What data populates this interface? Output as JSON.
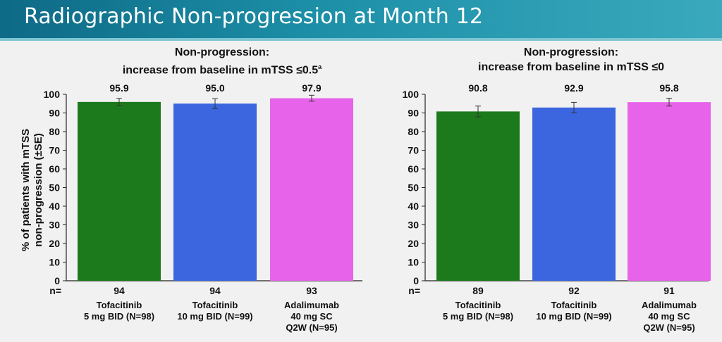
{
  "header": {
    "title": "Radiographic Non-progression at Month 12"
  },
  "ylabel": [
    "% of patients with mTSS",
    "non-progression (±SE)"
  ],
  "n_label": "n=",
  "colors": {
    "tofa5": "#1c7a1c",
    "tofa10": "#3b66e0",
    "ada": "#e764ea"
  },
  "chart_data": [
    {
      "type": "bar",
      "title": [
        "Non-progression:",
        "increase from baseline in mTSS ≤0.5"
      ],
      "title_sup": "a",
      "categories": [
        [
          "Tofacitinib",
          "5 mg BID (N=98)"
        ],
        [
          "Tofacitinib",
          "10 mg BID (N=99)"
        ],
        [
          "Adalimumab",
          "40 mg SC",
          "Q2W (N=95)"
        ]
      ],
      "values": [
        95.9,
        95.0,
        97.9
      ],
      "data_labels": [
        "95.9",
        "95.0",
        "97.9"
      ],
      "error": [
        1.9,
        2.6,
        1.6
      ],
      "n": [
        "94",
        "94",
        "93"
      ],
      "ylim": [
        0,
        100
      ],
      "yticks": [
        0,
        10,
        20,
        30,
        40,
        50,
        60,
        70,
        80,
        90,
        100
      ],
      "grid": false
    },
    {
      "type": "bar",
      "title": [
        "Non-progression:",
        "increase from baseline in mTSS ≤0"
      ],
      "title_sup": "",
      "categories": [
        [
          "Tofacitinib",
          "5 mg BID (N=98)"
        ],
        [
          "Tofacitinib",
          "10 mg BID (N=99)"
        ],
        [
          "Adalimumab",
          "40 mg SC",
          "Q2W (N=95)"
        ]
      ],
      "values": [
        90.8,
        92.9,
        95.8
      ],
      "data_labels": [
        "90.8",
        "92.9",
        "95.8"
      ],
      "error": [
        2.9,
        2.8,
        2.1
      ],
      "n": [
        "89",
        "92",
        "91"
      ],
      "ylim": [
        0,
        100
      ],
      "yticks": [
        0,
        10,
        20,
        30,
        40,
        50,
        60,
        70,
        80,
        90,
        100
      ],
      "grid": false
    }
  ]
}
